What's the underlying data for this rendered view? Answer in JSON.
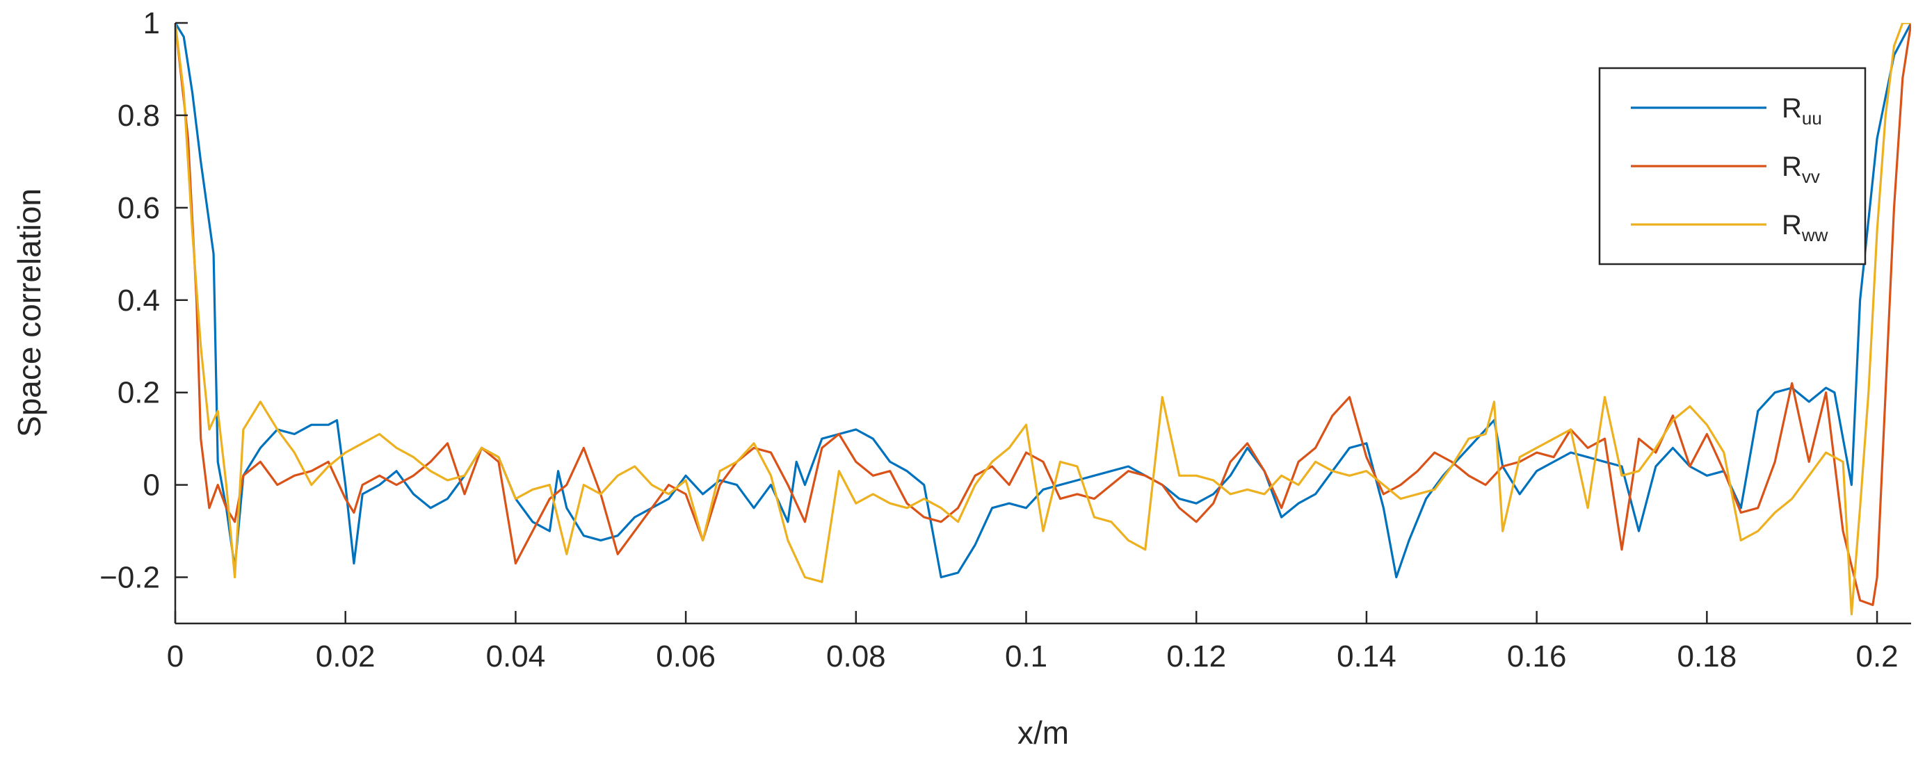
{
  "chart_data": {
    "type": "line",
    "title": "",
    "xlabel": "x/m",
    "ylabel": "Space correlation",
    "xlim": [
      0,
      0.204
    ],
    "ylim": [
      -0.3,
      1
    ],
    "xticks": [
      0,
      0.02,
      0.04,
      0.06,
      0.08,
      0.1,
      0.12,
      0.14,
      0.16,
      0.18,
      0.2
    ],
    "xtick_labels": [
      "0",
      "0.02",
      "0.04",
      "0.06",
      "0.08",
      "0.1",
      "0.12",
      "0.14",
      "0.16",
      "0.18",
      "0.2"
    ],
    "yticks": [
      -0.2,
      0,
      0.2,
      0.4,
      0.6,
      0.8,
      1
    ],
    "ytick_labels": [
      "−0.2",
      "0",
      "0.2",
      "0.4",
      "0.6",
      "0.8",
      "1"
    ],
    "grid": false,
    "legend_position": "top-right",
    "series": [
      {
        "name": "R",
        "subscript": "uu",
        "color": "#0072BD",
        "x": [
          0,
          0.001,
          0.002,
          0.003,
          0.0045,
          0.005,
          0.006,
          0.007,
          0.008,
          0.01,
          0.012,
          0.014,
          0.016,
          0.018,
          0.019,
          0.02,
          0.021,
          0.022,
          0.024,
          0.026,
          0.028,
          0.03,
          0.032,
          0.034,
          0.036,
          0.038,
          0.04,
          0.042,
          0.044,
          0.045,
          0.046,
          0.048,
          0.05,
          0.052,
          0.054,
          0.056,
          0.058,
          0.06,
          0.062,
          0.064,
          0.066,
          0.068,
          0.07,
          0.072,
          0.073,
          0.074,
          0.076,
          0.078,
          0.08,
          0.082,
          0.084,
          0.086,
          0.088,
          0.09,
          0.092,
          0.094,
          0.096,
          0.098,
          0.1,
          0.102,
          0.104,
          0.106,
          0.108,
          0.11,
          0.112,
          0.114,
          0.116,
          0.118,
          0.12,
          0.122,
          0.124,
          0.126,
          0.128,
          0.13,
          0.132,
          0.134,
          0.136,
          0.138,
          0.14,
          0.142,
          0.1435,
          0.145,
          0.147,
          0.149,
          0.151,
          0.153,
          0.155,
          0.156,
          0.158,
          0.16,
          0.162,
          0.164,
          0.166,
          0.168,
          0.17,
          0.172,
          0.174,
          0.176,
          0.178,
          0.18,
          0.182,
          0.184,
          0.186,
          0.188,
          0.19,
          0.192,
          0.194,
          0.195,
          0.197,
          0.198,
          0.2,
          0.202,
          0.204
        ],
        "y": [
          1,
          0.97,
          0.85,
          0.7,
          0.5,
          0.05,
          -0.05,
          -0.18,
          0.02,
          0.08,
          0.12,
          0.11,
          0.13,
          0.13,
          0.14,
          0.0,
          -0.17,
          -0.02,
          0.0,
          0.03,
          -0.02,
          -0.05,
          -0.03,
          0.02,
          0.08,
          0.06,
          -0.03,
          -0.08,
          -0.1,
          0.03,
          -0.05,
          -0.11,
          -0.12,
          -0.11,
          -0.07,
          -0.05,
          -0.03,
          0.02,
          -0.02,
          0.01,
          0.0,
          -0.05,
          0.0,
          -0.08,
          0.05,
          0.0,
          0.1,
          0.11,
          0.12,
          0.1,
          0.05,
          0.03,
          0.0,
          -0.2,
          -0.19,
          -0.13,
          -0.05,
          -0.04,
          -0.05,
          -0.01,
          0.0,
          0.01,
          0.02,
          0.03,
          0.04,
          0.02,
          0.0,
          -0.03,
          -0.04,
          -0.02,
          0.02,
          0.08,
          0.03,
          -0.07,
          -0.04,
          -0.02,
          0.03,
          0.08,
          0.09,
          -0.05,
          -0.2,
          -0.12,
          -0.03,
          0.02,
          0.06,
          0.1,
          0.14,
          0.04,
          -0.02,
          0.03,
          0.05,
          0.07,
          0.06,
          0.05,
          0.04,
          -0.1,
          0.04,
          0.08,
          0.04,
          0.02,
          0.03,
          -0.05,
          0.16,
          0.2,
          0.21,
          0.18,
          0.21,
          0.2,
          0.0,
          0.4,
          0.75,
          0.93,
          1
        ]
      },
      {
        "name": "R",
        "subscript": "vv",
        "color": "#D95319",
        "x": [
          0,
          0.0015,
          0.0025,
          0.003,
          0.004,
          0.005,
          0.006,
          0.007,
          0.008,
          0.01,
          0.012,
          0.014,
          0.016,
          0.018,
          0.02,
          0.021,
          0.022,
          0.024,
          0.026,
          0.028,
          0.03,
          0.032,
          0.034,
          0.036,
          0.038,
          0.04,
          0.042,
          0.044,
          0.046,
          0.048,
          0.05,
          0.052,
          0.054,
          0.056,
          0.058,
          0.06,
          0.062,
          0.064,
          0.066,
          0.068,
          0.07,
          0.072,
          0.074,
          0.076,
          0.078,
          0.08,
          0.082,
          0.084,
          0.086,
          0.088,
          0.09,
          0.092,
          0.094,
          0.096,
          0.098,
          0.1,
          0.102,
          0.104,
          0.106,
          0.108,
          0.11,
          0.112,
          0.114,
          0.116,
          0.118,
          0.12,
          0.122,
          0.124,
          0.126,
          0.128,
          0.13,
          0.132,
          0.134,
          0.136,
          0.138,
          0.14,
          0.142,
          0.144,
          0.146,
          0.148,
          0.15,
          0.152,
          0.154,
          0.156,
          0.158,
          0.16,
          0.162,
          0.164,
          0.166,
          0.168,
          0.17,
          0.172,
          0.174,
          0.176,
          0.178,
          0.18,
          0.182,
          0.184,
          0.186,
          0.188,
          0.19,
          0.192,
          0.194,
          0.196,
          0.198,
          0.1995,
          0.2,
          0.201,
          0.202,
          0.203,
          0.204
        ],
        "y": [
          1,
          0.75,
          0.4,
          0.1,
          -0.05,
          0.0,
          -0.05,
          -0.08,
          0.02,
          0.05,
          0.0,
          0.02,
          0.03,
          0.05,
          -0.03,
          -0.06,
          0.0,
          0.02,
          0.0,
          0.02,
          0.05,
          0.09,
          -0.02,
          0.08,
          0.05,
          -0.17,
          -0.1,
          -0.03,
          0.0,
          0.08,
          -0.02,
          -0.15,
          -0.1,
          -0.05,
          0.0,
          -0.02,
          -0.12,
          0.0,
          0.05,
          0.08,
          0.07,
          0.0,
          -0.08,
          0.08,
          0.11,
          0.05,
          0.02,
          0.03,
          -0.04,
          -0.07,
          -0.08,
          -0.05,
          0.02,
          0.04,
          0.0,
          0.07,
          0.05,
          -0.03,
          -0.02,
          -0.03,
          0.0,
          0.03,
          0.02,
          0.0,
          -0.05,
          -0.08,
          -0.04,
          0.05,
          0.09,
          0.03,
          -0.05,
          0.05,
          0.08,
          0.15,
          0.19,
          0.06,
          -0.02,
          0.0,
          0.03,
          0.07,
          0.05,
          0.02,
          0.0,
          0.04,
          0.05,
          0.07,
          0.06,
          0.12,
          0.08,
          0.1,
          -0.14,
          0.1,
          0.07,
          0.15,
          0.04,
          0.11,
          0.03,
          -0.06,
          -0.05,
          0.05,
          0.22,
          0.05,
          0.2,
          -0.1,
          -0.25,
          -0.26,
          -0.2,
          0.2,
          0.6,
          0.88,
          1
        ]
      },
      {
        "name": "R",
        "subscript": "ww",
        "color": "#EDB120",
        "x": [
          0,
          0.001,
          0.002,
          0.003,
          0.004,
          0.005,
          0.006,
          0.007,
          0.008,
          0.01,
          0.012,
          0.014,
          0.016,
          0.018,
          0.02,
          0.022,
          0.024,
          0.026,
          0.028,
          0.03,
          0.032,
          0.034,
          0.036,
          0.038,
          0.04,
          0.042,
          0.044,
          0.046,
          0.048,
          0.05,
          0.052,
          0.054,
          0.056,
          0.058,
          0.06,
          0.062,
          0.064,
          0.066,
          0.068,
          0.07,
          0.072,
          0.074,
          0.076,
          0.078,
          0.08,
          0.082,
          0.084,
          0.086,
          0.088,
          0.09,
          0.092,
          0.094,
          0.096,
          0.098,
          0.1,
          0.102,
          0.104,
          0.106,
          0.108,
          0.11,
          0.112,
          0.114,
          0.116,
          0.118,
          0.12,
          0.122,
          0.124,
          0.126,
          0.128,
          0.13,
          0.132,
          0.134,
          0.136,
          0.138,
          0.14,
          0.142,
          0.144,
          0.146,
          0.148,
          0.15,
          0.152,
          0.154,
          0.155,
          0.156,
          0.158,
          0.16,
          0.162,
          0.164,
          0.166,
          0.168,
          0.17,
          0.172,
          0.174,
          0.176,
          0.178,
          0.18,
          0.182,
          0.184,
          0.186,
          0.188,
          0.19,
          0.192,
          0.194,
          0.196,
          0.197,
          0.198,
          0.199,
          0.2,
          0.201,
          0.202,
          0.203,
          0.204
        ],
        "y": [
          1,
          0.85,
          0.55,
          0.3,
          0.12,
          0.16,
          0.0,
          -0.2,
          0.12,
          0.18,
          0.12,
          0.07,
          0.0,
          0.04,
          0.07,
          0.09,
          0.11,
          0.08,
          0.06,
          0.03,
          0.01,
          0.02,
          0.08,
          0.06,
          -0.03,
          -0.01,
          0.0,
          -0.15,
          0.0,
          -0.02,
          0.02,
          0.04,
          0.0,
          -0.02,
          0.01,
          -0.12,
          0.03,
          0.05,
          0.09,
          0.02,
          -0.12,
          -0.2,
          -0.21,
          0.03,
          -0.04,
          -0.02,
          -0.04,
          -0.05,
          -0.03,
          -0.05,
          -0.08,
          0.0,
          0.05,
          0.08,
          0.13,
          -0.1,
          0.05,
          0.04,
          -0.07,
          -0.08,
          -0.12,
          -0.14,
          0.19,
          0.02,
          0.02,
          0.01,
          -0.02,
          -0.01,
          -0.02,
          0.02,
          0.0,
          0.05,
          0.03,
          0.02,
          0.03,
          0.0,
          -0.03,
          -0.02,
          -0.01,
          0.04,
          0.1,
          0.11,
          0.18,
          -0.1,
          0.06,
          0.08,
          0.1,
          0.12,
          -0.05,
          0.19,
          0.02,
          0.03,
          0.08,
          0.14,
          0.17,
          0.13,
          0.07,
          -0.12,
          -0.1,
          -0.06,
          -0.03,
          0.02,
          0.07,
          0.05,
          -0.28,
          -0.05,
          0.2,
          0.55,
          0.8,
          0.95,
          1,
          1
        ]
      }
    ]
  }
}
